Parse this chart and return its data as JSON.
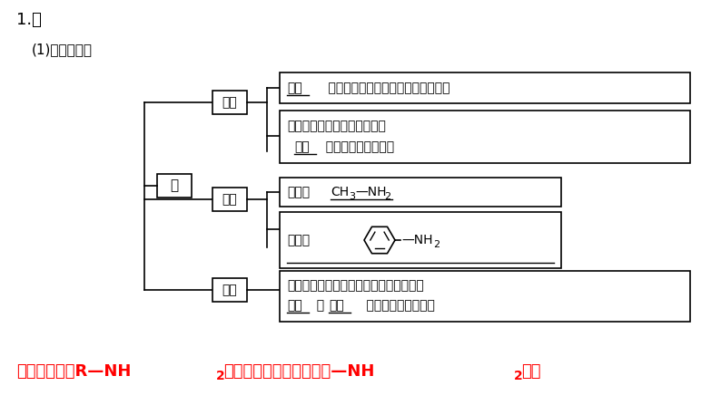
{
  "title": "1.胺",
  "subtitle": "(1)结构与用途",
  "background_color": "#ffffff",
  "text_color": "#000000",
  "bottom_text_color": "#ff0000",
  "center_node": "胺",
  "branch1_label": "结构",
  "branch2_label": "实例",
  "branch3_label": "用途",
  "box1a_main": "取代氨分子中的氢原子形成的化合物",
  "box1a_underlined": "烃基",
  "box1b_line1": "也可看作烃分子中的氢原子被",
  "box1b_line2_pre": "所替代得到的化合物",
  "box1b_underlined": "氨基",
  "box2a_label": "甲胺：",
  "box2b_label": "苯胺：",
  "box3_line1": "重要的化工原料，如甲胺和苯胺都是合成",
  "box3_line2_pre1": "、",
  "box3_line2_pre2": "    和染料等的重要原料",
  "box3_ul1": "医药",
  "box3_ul2": "农药",
  "bottom_line1_pre": "通式可表示为R—NH",
  "bottom_line1_sub": "2",
  "bottom_line1_post": "，官能团的名称为氨基（—NH",
  "bottom_line1_sub2": "2",
  "bottom_line1_end": "）。"
}
